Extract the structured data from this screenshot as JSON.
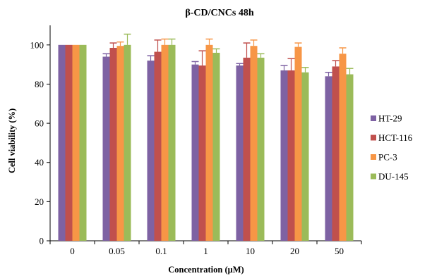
{
  "chart_data": {
    "type": "bar",
    "title": "β-CD/CNCs 48h",
    "xlabel": "Concentration (μM)",
    "ylabel": "Cell viability (%)",
    "ylim": [
      0,
      110
    ],
    "yticks": [
      0,
      20,
      40,
      60,
      80,
      100
    ],
    "categories": [
      "0",
      "0.05",
      "0.1",
      "1",
      "10",
      "20",
      "50"
    ],
    "legend_position": "right",
    "grid": false,
    "series": [
      {
        "name": "HT-29",
        "color": "#7E62A3",
        "values": [
          100,
          94,
          92,
          90,
          89.5,
          87,
          84
        ],
        "errors": [
          0,
          1.5,
          2.5,
          1.5,
          1,
          2.5,
          2
        ]
      },
      {
        "name": "HCT-116",
        "color": "#C0504D",
        "values": [
          100,
          98.5,
          96.5,
          89.5,
          93.5,
          87,
          89
        ],
        "errors": [
          0,
          2.5,
          6,
          7.5,
          7.5,
          6,
          3
        ]
      },
      {
        "name": "PC-3",
        "color": "#F79646",
        "values": [
          100,
          99.5,
          100,
          100,
          99.5,
          99,
          95.5
        ],
        "errors": [
          0,
          2,
          3,
          3,
          3,
          2,
          3
        ]
      },
      {
        "name": "DU-145",
        "color": "#9BBB59",
        "values": [
          100,
          100,
          100,
          96,
          93.5,
          86,
          85
        ],
        "errors": [
          0,
          5.5,
          3,
          2,
          2,
          2.5,
          3
        ]
      }
    ]
  }
}
